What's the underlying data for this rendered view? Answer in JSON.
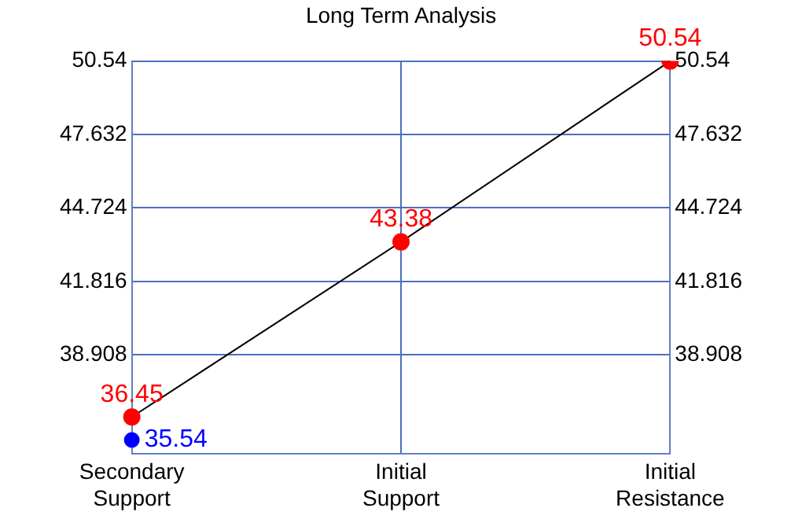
{
  "chart_data": {
    "type": "line",
    "title": "Long Term Analysis",
    "categories": [
      "Secondary Support",
      "Initial Support",
      "Initial Resistance"
    ],
    "series": [
      {
        "color": "#000000",
        "colors": [
          "#ff0000",
          "#ff0000",
          "#ff0000"
        ],
        "values": [
          36.45,
          43.38,
          50.54
        ]
      },
      {
        "type": "scatter",
        "color": "#0000ff",
        "values": [
          35.54,
          null,
          null
        ]
      }
    ],
    "ylim": [
      35,
      50.54
    ],
    "yticks": [
      38.908,
      41.816,
      44.724,
      47.632,
      50.54
    ],
    "y2lim": [
      35,
      50.54
    ],
    "y2ticks": [
      38.908,
      41.816,
      44.724,
      47.632,
      50.54
    ],
    "grid": true,
    "marker": "circle",
    "data_labels": true,
    "legend": false
  }
}
